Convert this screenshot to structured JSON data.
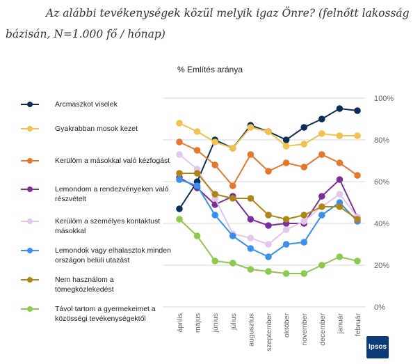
{
  "title": "Az alábbi tevékenységek közül melyik igaz Önre? (felnőtt lakosság bázisán, N=1.000 fő / hónap)",
  "logo_text": "Ipsos",
  "chart_data": {
    "type": "line",
    "subtitle": "% Említés aránya",
    "categories": [
      "április",
      "május",
      "június",
      "július",
      "augusztus",
      "szeptember",
      "október",
      "november",
      "december",
      "január",
      "február"
    ],
    "ylim": [
      0,
      100
    ],
    "yticks": [
      "0%",
      "20%",
      "40%",
      "60%",
      "80%",
      "100%"
    ],
    "grid": true,
    "legend": "left",
    "series": [
      {
        "name": "Arcmaszkot viselek",
        "color": "#0b2d57",
        "values": [
          47,
          60,
          80,
          76,
          87,
          84,
          80,
          86,
          90,
          95,
          94
        ]
      },
      {
        "name": "Gyakrabban mosok kezet",
        "color": "#f2c14e",
        "values": [
          88,
          84,
          79,
          76,
          86,
          84,
          77,
          78,
          83,
          82,
          82
        ]
      },
      {
        "name": "Kerülöm a másokkal való kézfogást",
        "color": "#e8772e",
        "values": [
          79,
          75,
          68,
          58,
          73,
          65,
          69,
          67,
          73,
          69,
          63
        ]
      },
      {
        "name": "Lemondom a rendezvényeken való részvételt",
        "color": "#7b2f9a",
        "values": [
          62,
          57,
          49,
          53,
          42,
          39,
          40,
          40,
          53,
          61,
          43
        ]
      },
      {
        "name": "Kerülöm a személyes kontaktust másokkal",
        "color": "#e5c6ec",
        "values": [
          73,
          66,
          52,
          35,
          33,
          30,
          37,
          41,
          48,
          54,
          43
        ]
      },
      {
        "name": "Lemondok vagy elhalasztok minden országon belüli utazást",
        "color": "#3a8fef",
        "values": [
          61,
          58,
          44,
          34,
          28,
          24,
          30,
          31,
          44,
          50,
          41
        ]
      },
      {
        "name": "Nem használom a tömegközlekedést",
        "color": "#b08518",
        "values": [
          64,
          64,
          54,
          52,
          52,
          44,
          42,
          44,
          48,
          48,
          42
        ]
      },
      {
        "name": "Távol tartom a gyermekeimet a közösségi tevékenységektől",
        "color": "#8dc94e",
        "values": [
          42,
          34,
          22,
          21,
          18,
          17,
          16,
          16,
          20,
          24,
          22
        ]
      }
    ]
  }
}
